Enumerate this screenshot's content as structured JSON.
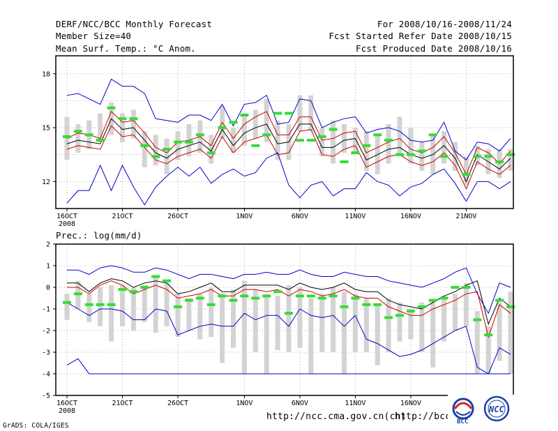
{
  "header": {
    "left": [
      "DERF/NCC/BCC Monthly Forecast",
      "Member Size=40",
      "Mean Surf. Temp.: °C Anom."
    ],
    "right": [
      "For 2008/10/16-2008/11/24",
      "Fcst Started Refer Date 2008/10/15",
      "Fcst Produced Date 2008/10/16"
    ]
  },
  "footer": {
    "credit": "GrADS: COLA/IGES",
    "url1": "http://ncc.cma.gov.cn(ch)",
    "url2": "http://bcc.",
    "logo_left_text": "BCC",
    "logo_right_text": "NCC"
  },
  "colors": {
    "envelope": "#0000cc",
    "spread": "#cc0000",
    "mean": "#000000",
    "member": "#d3d3d3",
    "obs": "#33dd33"
  },
  "chart_data": [
    {
      "type": "line",
      "title": "Mean Surf. Temp.: °C Anom.",
      "ylim": [
        10.5,
        19
      ],
      "yticks": [
        12,
        15,
        18
      ],
      "xtick_labels": [
        "16OCT",
        "21OCT",
        "26OCT",
        "1NOV",
        "6NOV",
        "11NOV",
        "16NOV",
        "21NOV"
      ],
      "xtick_index": [
        0,
        5,
        10,
        16,
        21,
        26,
        31,
        36
      ],
      "year_label": "2008",
      "days": 40,
      "series": [
        {
          "name": "max",
          "values": [
            16.8,
            16.9,
            16.6,
            16.3,
            17.7,
            17.3,
            17.3,
            16.9,
            15.5,
            15.4,
            15.3,
            15.7,
            15.7,
            15.4,
            16.3,
            15.1,
            16.3,
            16.4,
            16.8,
            15.2,
            15.3,
            16.6,
            16.5,
            15.0,
            15.3,
            15.5,
            15.6,
            14.7,
            14.9,
            15.0,
            14.8,
            14.3,
            14.2,
            14.3,
            15.3,
            13.7,
            13.2,
            14.2,
            14.1,
            13.7,
            14.4
          ]
        },
        {
          "name": "upper",
          "values": [
            14.4,
            14.7,
            14.6,
            14.4,
            15.9,
            15.3,
            15.4,
            14.7,
            13.9,
            13.6,
            14.2,
            14.3,
            14.5,
            14.0,
            15.3,
            14.4,
            15.2,
            15.6,
            15.9,
            14.6,
            14.6,
            15.6,
            15.6,
            14.3,
            14.4,
            14.7,
            14.8,
            13.6,
            13.9,
            14.2,
            14.4,
            13.8,
            13.6,
            13.9,
            14.5,
            13.6,
            12.4,
            13.9,
            13.6,
            13.0,
            13.7
          ]
        },
        {
          "name": "mean",
          "values": [
            14.1,
            14.3,
            14.2,
            14.1,
            15.5,
            14.9,
            15.0,
            14.3,
            13.6,
            13.3,
            13.8,
            14.0,
            14.2,
            13.7,
            14.9,
            14.0,
            14.7,
            15.0,
            15.2,
            14.1,
            14.2,
            15.2,
            15.2,
            13.9,
            13.9,
            14.3,
            14.4,
            13.2,
            13.5,
            13.8,
            13.9,
            13.5,
            13.3,
            13.5,
            14.0,
            13.3,
            12.0,
            13.5,
            13.1,
            12.7,
            13.3
          ]
        },
        {
          "name": "lower",
          "values": [
            13.8,
            14.0,
            13.9,
            13.8,
            15.1,
            14.5,
            14.6,
            13.9,
            13.2,
            13.0,
            13.4,
            13.6,
            13.8,
            13.3,
            14.5,
            13.6,
            14.2,
            14.4,
            14.6,
            13.5,
            13.6,
            14.8,
            14.9,
            13.5,
            13.4,
            13.8,
            14.0,
            12.8,
            13.1,
            13.4,
            13.5,
            13.1,
            12.9,
            13.1,
            13.6,
            12.9,
            11.6,
            13.1,
            12.7,
            12.4,
            12.9
          ]
        },
        {
          "name": "min",
          "values": [
            10.8,
            11.5,
            11.5,
            12.9,
            11.5,
            12.9,
            11.7,
            10.7,
            11.7,
            12.3,
            12.8,
            12.3,
            12.8,
            11.9,
            12.4,
            12.7,
            12.3,
            12.5,
            13.3,
            13.6,
            11.8,
            11.1,
            11.8,
            12.0,
            11.2,
            11.6,
            11.6,
            12.5,
            12.0,
            11.8,
            11.2,
            11.7,
            11.9,
            12.4,
            12.7,
            11.9,
            10.9,
            12.0,
            12.0,
            11.6,
            12.0
          ]
        }
      ],
      "members": [
        [
          13.2,
          15.6
        ],
        [
          13.6,
          15.2
        ],
        [
          13.8,
          15.4
        ],
        [
          14.2,
          15.8
        ],
        [
          14.6,
          16.4
        ],
        [
          14.2,
          15.8
        ],
        [
          14.4,
          16.0
        ],
        [
          12.8,
          14.8
        ],
        [
          12.9,
          14.6
        ],
        [
          12.4,
          14.4
        ],
        [
          13.2,
          14.8
        ],
        [
          13.4,
          15.2
        ],
        [
          13.6,
          15.4
        ],
        [
          13.0,
          14.6
        ],
        [
          14.4,
          16.2
        ],
        [
          13.6,
          15.0
        ],
        [
          14.0,
          15.8
        ],
        [
          14.4,
          16.0
        ],
        [
          14.2,
          16.6
        ],
        [
          13.2,
          15.4
        ],
        [
          13.2,
          15.2
        ],
        [
          14.8,
          16.8
        ],
        [
          14.8,
          16.8
        ],
        [
          13.4,
          15.0
        ],
        [
          13.0,
          15.4
        ],
        [
          13.6,
          15.2
        ],
        [
          13.6,
          15.0
        ],
        [
          12.6,
          14.8
        ],
        [
          12.4,
          14.6
        ],
        [
          13.0,
          15.2
        ],
        [
          13.4,
          15.6
        ],
        [
          13.0,
          15.0
        ],
        [
          12.6,
          14.2
        ],
        [
          12.4,
          14.6
        ],
        [
          13.0,
          14.8
        ],
        [
          12.6,
          14.2
        ],
        [
          11.8,
          13.4
        ],
        [
          12.9,
          14.0
        ],
        [
          12.4,
          13.8
        ],
        [
          12.2,
          13.8
        ],
        [
          12.6,
          13.8
        ]
      ],
      "obs": [
        14.5,
        14.8,
        14.6,
        14.3,
        16.1,
        15.5,
        15.5,
        14.0,
        13.4,
        13.8,
        14.2,
        14.2,
        14.6,
        13.6,
        15.0,
        15.3,
        15.7,
        14.0,
        14.6,
        15.8,
        15.8,
        14.3,
        14.3,
        14.5,
        14.9,
        13.1,
        13.6,
        14.0,
        14.6,
        14.3,
        13.5,
        13.5,
        13.7,
        14.6,
        13.4,
        null,
        12.4,
        13.4,
        13.4,
        13.1,
        13.5
      ]
    },
    {
      "type": "line",
      "title": "Prec.: log(mm/d)",
      "ylim": [
        -5,
        2
      ],
      "yticks": [
        -5,
        -4,
        -3,
        -2,
        -1,
        0,
        1,
        2
      ],
      "xtick_labels": [
        "16OCT",
        "21OCT",
        "26OCT",
        "1NOV",
        "6NOV",
        "11NOV",
        "16NOV",
        "21NOV"
      ],
      "xtick_index": [
        0,
        5,
        10,
        16,
        21,
        26,
        31,
        36
      ],
      "year_label": "2008",
      "days": 40,
      "series": [
        {
          "name": "max",
          "values": [
            0.8,
            0.8,
            0.6,
            0.9,
            1.0,
            0.9,
            0.7,
            0.7,
            0.9,
            0.8,
            0.6,
            0.4,
            0.6,
            0.6,
            0.5,
            0.4,
            0.6,
            0.6,
            0.7,
            0.6,
            0.6,
            0.8,
            0.6,
            0.5,
            0.5,
            0.7,
            0.6,
            0.5,
            0.5,
            0.3,
            0.2,
            0.1,
            0.0,
            0.2,
            0.4,
            0.7,
            0.9,
            -0.3,
            -1.2,
            0.2,
            0.0
          ]
        },
        {
          "name": "mean",
          "values": [
            0.2,
            0.2,
            -0.2,
            0.2,
            0.4,
            0.3,
            0.0,
            0.2,
            0.3,
            0.2,
            -0.3,
            -0.2,
            0.0,
            0.2,
            -0.2,
            -0.2,
            0.1,
            0.1,
            0.1,
            0.1,
            -0.1,
            0.2,
            0.0,
            -0.1,
            0.0,
            0.2,
            -0.1,
            -0.2,
            -0.2,
            -0.6,
            -0.8,
            -0.9,
            -1.0,
            -0.7,
            -0.4,
            -0.2,
            0.1,
            0.3,
            -1.7,
            -0.5,
            -0.9
          ]
        },
        {
          "name": "lower",
          "values": [
            0.0,
            0.0,
            -0.3,
            0.1,
            0.3,
            0.1,
            -0.3,
            -0.1,
            0.1,
            -0.1,
            -0.5,
            -0.4,
            -0.3,
            -0.1,
            -0.4,
            -0.4,
            -0.1,
            -0.1,
            -0.2,
            -0.1,
            -0.4,
            -0.1,
            -0.2,
            -0.4,
            -0.3,
            -0.1,
            -0.4,
            -0.5,
            -0.5,
            -0.9,
            -1.1,
            -1.3,
            -1.3,
            -1.0,
            -0.8,
            -0.6,
            -0.3,
            -0.2,
            -2.3,
            -0.8,
            -1.2
          ]
        },
        {
          "name": "min",
          "values": [
            -0.7,
            -1.0,
            -1.3,
            -1.0,
            -1.0,
            -1.1,
            -1.5,
            -1.5,
            -1.0,
            -1.1,
            -2.2,
            -2.0,
            -1.8,
            -1.7,
            -1.8,
            -1.8,
            -1.2,
            -1.5,
            -1.3,
            -1.3,
            -1.8,
            -1.0,
            -1.3,
            -1.4,
            -1.3,
            -1.8,
            -1.3,
            -2.4,
            -2.6,
            -2.9,
            -3.2,
            -3.1,
            -2.9,
            -2.6,
            -2.3,
            -2.0,
            -1.8,
            -3.7,
            -4.0,
            -2.8,
            -3.1
          ]
        },
        {
          "name": "floor",
          "values": [
            -3.6,
            -3.3,
            -4.0,
            -4.0,
            -4.0,
            -4.0,
            -4.0,
            -4.0,
            -4.0,
            -4.0,
            -4.0,
            -4.0,
            -4.0,
            -4.0,
            -4.0,
            -4.0,
            -4.0,
            -4.0,
            -4.0,
            -4.0,
            -4.0,
            -4.0,
            -4.0,
            -4.0,
            -4.0,
            -4.0,
            -4.0,
            -4.0,
            -4.0,
            -4.0,
            -4.0,
            -4.0,
            -4.0,
            -4.0,
            -4.0,
            -4.0,
            -4.0,
            -4.0,
            -4.0,
            -4.0,
            -4.0
          ]
        }
      ],
      "members": [
        [
          -1.5,
          -0.3
        ],
        [
          -1.0,
          0.3
        ],
        [
          -1.6,
          -0.3
        ],
        [
          -1.8,
          0.0
        ],
        [
          -2.5,
          0.1
        ],
        [
          -1.8,
          0.1
        ],
        [
          -2.0,
          0.0
        ],
        [
          -1.6,
          0.1
        ],
        [
          -2.1,
          0.5
        ],
        [
          -1.8,
          0.2
        ],
        [
          -2.3,
          -0.3
        ],
        [
          -2.0,
          -0.5
        ],
        [
          -2.4,
          -0.3
        ],
        [
          -2.3,
          0.0
        ],
        [
          -3.5,
          -0.3
        ],
        [
          -2.8,
          -0.1
        ],
        [
          -4.0,
          0.3
        ],
        [
          -3.0,
          -0.1
        ],
        [
          -4.0,
          -0.3
        ],
        [
          -2.9,
          -0.4
        ],
        [
          -3.0,
          0.1
        ],
        [
          -2.8,
          0.0
        ],
        [
          -4.0,
          -0.5
        ],
        [
          -3.0,
          -0.3
        ],
        [
          -3.0,
          0.0
        ],
        [
          -4.0,
          -0.2
        ],
        [
          -3.0,
          -0.3
        ],
        [
          -3.0,
          -0.5
        ],
        [
          -3.6,
          -0.8
        ],
        [
          -3.0,
          -0.5
        ],
        [
          -2.5,
          -0.7
        ],
        [
          -2.4,
          -1.0
        ],
        [
          -3.0,
          -0.7
        ],
        [
          -3.7,
          -0.6
        ],
        [
          -2.5,
          -0.4
        ],
        [
          -2.0,
          -0.3
        ],
        [
          -1.8,
          0.2
        ],
        [
          -4.0,
          -1.1
        ],
        [
          -4.0,
          -1.8
        ],
        [
          -3.4,
          -0.7
        ],
        [
          -4.0,
          -0.2
        ]
      ],
      "obs": [
        -0.7,
        -0.3,
        -0.8,
        -0.8,
        -0.8,
        -0.1,
        -0.2,
        0.0,
        0.5,
        0.3,
        -0.9,
        -0.6,
        -0.5,
        -0.8,
        -0.4,
        -0.6,
        -0.4,
        -0.5,
        -0.4,
        -0.2,
        -1.2,
        -0.4,
        -0.4,
        -0.5,
        -0.4,
        -0.9,
        -0.5,
        -0.8,
        -0.8,
        -1.4,
        -1.3,
        -1.1,
        -0.9,
        -0.6,
        -0.5,
        0.0,
        0.0,
        -1.5,
        -2.2,
        -0.6,
        -0.9
      ]
    }
  ]
}
